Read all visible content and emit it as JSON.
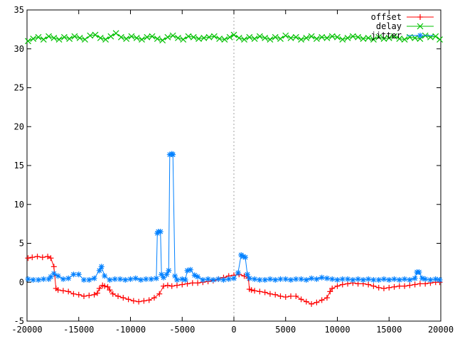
{
  "chart_data": {
    "type": "line",
    "title": "",
    "xlabel": "",
    "ylabel": "",
    "xlim": [
      -20000,
      20000
    ],
    "ylim": [
      -5,
      35
    ],
    "x_ticks": [
      -20000,
      -15000,
      -10000,
      -5000,
      0,
      5000,
      10000,
      15000,
      20000
    ],
    "y_ticks": [
      -5,
      0,
      5,
      10,
      15,
      20,
      25,
      30,
      35
    ],
    "vertical_reference_line": 0,
    "grid": false,
    "legend_position": "top-right",
    "series": [
      {
        "name": "offset",
        "color": "#ff0000",
        "marker": "plus",
        "x": [
          -19900,
          -19500,
          -19000,
          -18500,
          -18000,
          -17700,
          -17400,
          -17200,
          -17000,
          -16500,
          -16000,
          -15500,
          -15000,
          -14500,
          -14000,
          -13500,
          -13200,
          -13000,
          -12700,
          -12500,
          -12200,
          -12000,
          -11700,
          -11200,
          -10700,
          -10200,
          -9700,
          -9200,
          -8700,
          -8200,
          -7700,
          -7200,
          -6800,
          -6400,
          -6000,
          -5500,
          -5000,
          -4500,
          -4000,
          -3500,
          -3000,
          -2500,
          -2000,
          -1500,
          -1000,
          -500,
          0,
          500,
          1000,
          1400,
          1500,
          1700,
          2000,
          2500,
          3000,
          3500,
          4000,
          4500,
          5000,
          5500,
          6000,
          6500,
          7000,
          7500,
          8000,
          8500,
          9000,
          9300,
          9500,
          10000,
          10500,
          11000,
          11500,
          12000,
          12500,
          13000,
          13500,
          14000,
          14500,
          15000,
          15500,
          16000,
          16500,
          17000,
          17500,
          18000,
          18500,
          19000,
          19500,
          19900
        ],
        "values": [
          3.1,
          3.2,
          3.3,
          3.2,
          3.3,
          3.1,
          2.0,
          -0.8,
          -1.0,
          -1.1,
          -1.2,
          -1.5,
          -1.6,
          -1.8,
          -1.7,
          -1.6,
          -1.4,
          -0.8,
          -0.4,
          -0.5,
          -0.6,
          -1.0,
          -1.5,
          -1.8,
          -2.0,
          -2.2,
          -2.4,
          -2.5,
          -2.4,
          -2.3,
          -2.0,
          -1.5,
          -0.5,
          -0.4,
          -0.5,
          -0.4,
          -0.3,
          -0.2,
          -0.1,
          -0.1,
          0.0,
          0.1,
          0.2,
          0.4,
          0.6,
          0.8,
          0.9,
          1.0,
          0.8,
          0.5,
          -0.9,
          -1.0,
          -1.1,
          -1.2,
          -1.3,
          -1.5,
          -1.6,
          -1.8,
          -1.9,
          -1.8,
          -1.8,
          -2.2,
          -2.5,
          -2.8,
          -2.6,
          -2.3,
          -2.0,
          -1.2,
          -0.8,
          -0.5,
          -0.3,
          -0.2,
          -0.1,
          -0.2,
          -0.2,
          -0.3,
          -0.5,
          -0.7,
          -0.8,
          -0.7,
          -0.6,
          -0.5,
          -0.5,
          -0.4,
          -0.3,
          -0.2,
          -0.2,
          -0.1,
          0.0,
          0.0
        ]
      },
      {
        "name": "delay",
        "color": "#00c000",
        "marker": "cross",
        "x": [
          -19900,
          -19400,
          -18900,
          -18400,
          -17900,
          -17400,
          -16900,
          -16400,
          -15900,
          -15400,
          -14900,
          -14400,
          -13900,
          -13400,
          -12900,
          -12400,
          -11900,
          -11400,
          -10900,
          -10400,
          -9900,
          -9400,
          -8900,
          -8400,
          -7900,
          -7400,
          -6900,
          -6400,
          -5900,
          -5400,
          -4900,
          -4400,
          -3900,
          -3400,
          -2900,
          -2400,
          -1900,
          -1400,
          -900,
          -400,
          0,
          500,
          1000,
          1500,
          2000,
          2500,
          3000,
          3500,
          4000,
          4500,
          5000,
          5500,
          6000,
          6500,
          7000,
          7500,
          8000,
          8500,
          9000,
          9500,
          10000,
          10500,
          11000,
          11500,
          12000,
          12500,
          13000,
          13500,
          14000,
          14500,
          15000,
          15500,
          16000,
          16500,
          17000,
          17500,
          18000,
          18500,
          19000,
          19500,
          19900
        ],
        "values": [
          31.0,
          31.3,
          31.5,
          31.2,
          31.6,
          31.4,
          31.2,
          31.5,
          31.3,
          31.6,
          31.4,
          31.2,
          31.7,
          31.8,
          31.4,
          31.2,
          31.6,
          32.0,
          31.5,
          31.3,
          31.6,
          31.4,
          31.2,
          31.5,
          31.6,
          31.3,
          31.1,
          31.5,
          31.7,
          31.4,
          31.2,
          31.6,
          31.5,
          31.3,
          31.4,
          31.5,
          31.6,
          31.3,
          31.2,
          31.5,
          31.8,
          31.4,
          31.2,
          31.5,
          31.3,
          31.6,
          31.4,
          31.2,
          31.5,
          31.3,
          31.7,
          31.4,
          31.5,
          31.2,
          31.4,
          31.6,
          31.3,
          31.5,
          31.4,
          31.6,
          31.5,
          31.2,
          31.4,
          31.6,
          31.5,
          31.3,
          31.4,
          31.2,
          31.5,
          31.3,
          31.4,
          31.6,
          31.3,
          31.2,
          31.5,
          31.4,
          31.3,
          31.7,
          31.5,
          31.6,
          31.2
        ]
      },
      {
        "name": "jitter",
        "color": "#0080ff",
        "marker": "star",
        "x": [
          -19900,
          -19400,
          -18900,
          -18400,
          -17900,
          -17700,
          -17400,
          -17000,
          -16500,
          -16000,
          -15500,
          -15000,
          -14500,
          -14000,
          -13500,
          -13000,
          -12800,
          -12500,
          -12000,
          -11500,
          -11000,
          -10500,
          -10000,
          -9500,
          -9000,
          -8500,
          -8000,
          -7500,
          -7400,
          -7300,
          -7100,
          -7000,
          -6800,
          -6500,
          -6300,
          -6200,
          -6000,
          -5900,
          -5700,
          -5500,
          -5000,
          -4700,
          -4500,
          -4200,
          -3800,
          -3500,
          -3000,
          -2500,
          -2000,
          -1500,
          -1000,
          -500,
          0,
          400,
          700,
          900,
          1100,
          1300,
          1500,
          2000,
          2500,
          3000,
          3500,
          4000,
          4500,
          5000,
          5500,
          6000,
          6500,
          7000,
          7500,
          8000,
          8500,
          9000,
          9500,
          10000,
          10500,
          11000,
          11500,
          12000,
          12500,
          13000,
          13500,
          14000,
          14500,
          15000,
          15500,
          16000,
          16500,
          17000,
          17500,
          17700,
          17900,
          18200,
          18500,
          19000,
          19500,
          19900
        ],
        "values": [
          0.4,
          0.3,
          0.3,
          0.4,
          0.4,
          0.7,
          1.1,
          0.8,
          0.4,
          0.5,
          1.0,
          1.0,
          0.3,
          0.3,
          0.5,
          1.5,
          2.0,
          0.8,
          0.3,
          0.4,
          0.4,
          0.3,
          0.4,
          0.5,
          0.3,
          0.4,
          0.4,
          0.5,
          6.3,
          6.5,
          6.5,
          1.0,
          0.6,
          1.0,
          1.5,
          16.4,
          16.5,
          16.4,
          0.8,
          0.3,
          0.4,
          0.3,
          1.5,
          1.6,
          0.9,
          0.7,
          0.3,
          0.4,
          0.3,
          0.4,
          0.3,
          0.4,
          0.5,
          1.2,
          3.5,
          3.3,
          3.2,
          1.0,
          0.5,
          0.4,
          0.3,
          0.3,
          0.4,
          0.3,
          0.4,
          0.4,
          0.3,
          0.4,
          0.4,
          0.3,
          0.5,
          0.4,
          0.6,
          0.5,
          0.4,
          0.3,
          0.4,
          0.4,
          0.3,
          0.4,
          0.3,
          0.4,
          0.3,
          0.3,
          0.4,
          0.3,
          0.4,
          0.3,
          0.4,
          0.3,
          0.5,
          1.3,
          1.3,
          0.5,
          0.4,
          0.3,
          0.4,
          0.3
        ]
      }
    ]
  }
}
